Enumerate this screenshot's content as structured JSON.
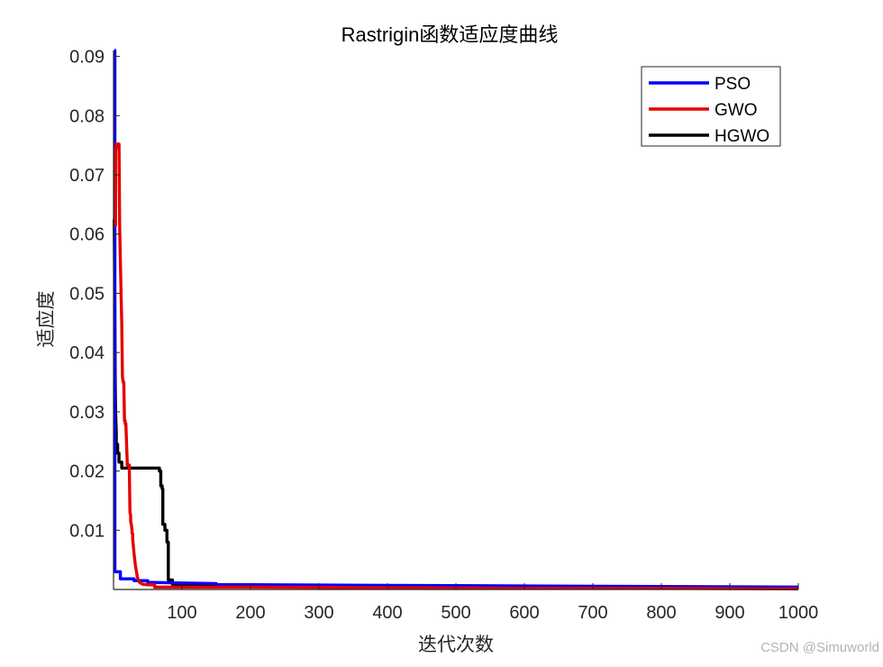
{
  "chart_data": {
    "type": "line",
    "title": "Rastrigin函数适应度曲线",
    "xlabel": "迭代次数",
    "ylabel": "适应度",
    "xlim": [
      0,
      1000
    ],
    "ylim": [
      0,
      0.091
    ],
    "x_ticks": [
      100,
      200,
      300,
      400,
      500,
      600,
      700,
      800,
      900,
      1000
    ],
    "x_tick_labels": [
      "100",
      "200",
      "300",
      "400",
      "500",
      "600",
      "700",
      "800",
      "900",
      "1000"
    ],
    "y_ticks": [
      0.01,
      0.02,
      0.03,
      0.04,
      0.05,
      0.06,
      0.07,
      0.08,
      0.09
    ],
    "y_tick_labels": [
      "0.01",
      "0.02",
      "0.03",
      "0.04",
      "0.05",
      "0.06",
      "0.07",
      "0.08",
      "0.09"
    ],
    "grid": false,
    "legend_position": "top-right",
    "series": [
      {
        "name": "PSO",
        "color": "#0000ff",
        "x": [
          1,
          2,
          2,
          10,
          10,
          30,
          30,
          50,
          50,
          100,
          150,
          150,
          200,
          400,
          600,
          800,
          1000
        ],
        "y": [
          0.091,
          0.091,
          0.003,
          0.003,
          0.0018,
          0.0018,
          0.0015,
          0.0015,
          0.0012,
          0.0011,
          0.001,
          0.0008,
          0.0008,
          0.0007,
          0.0006,
          0.0005,
          0.0004
        ]
      },
      {
        "name": "GWO",
        "color": "#e60000",
        "x": [
          1,
          3,
          3,
          4,
          4,
          8,
          9,
          11,
          12,
          13,
          14,
          15,
          16,
          17,
          17,
          18,
          20,
          20,
          23,
          24,
          25,
          25,
          26,
          27,
          27,
          28,
          28,
          30,
          32,
          35,
          38,
          42,
          48,
          60,
          60,
          90,
          100,
          200,
          400,
          600,
          800,
          1000
        ],
        "y": [
          0.0615,
          0.0615,
          0.0745,
          0.0745,
          0.0752,
          0.0752,
          0.061,
          0.05,
          0.045,
          0.036,
          0.035,
          0.035,
          0.0285,
          0.0285,
          0.028,
          0.028,
          0.0215,
          0.021,
          0.021,
          0.013,
          0.0125,
          0.0115,
          0.011,
          0.01,
          0.0095,
          0.0094,
          0.0085,
          0.006,
          0.004,
          0.002,
          0.0012,
          0.0009,
          0.0008,
          0.0008,
          0.0004,
          0.0004,
          0.0004,
          0.0004,
          0.0003,
          0.0002,
          0.0002,
          0.0001
        ]
      },
      {
        "name": "HGWO",
        "color": "#000000",
        "x": [
          1,
          1.5,
          2,
          2.5,
          3,
          4,
          4,
          6,
          6,
          8,
          8,
          12,
          12,
          67,
          67,
          69,
          69,
          71,
          71,
          72,
          72,
          75,
          75,
          78,
          78,
          80,
          80,
          86,
          86,
          100,
          120,
          150,
          200,
          300,
          400,
          600,
          800,
          1000
        ],
        "y": [
          0.0625,
          0.055,
          0.044,
          0.035,
          0.03,
          0.0265,
          0.0245,
          0.0245,
          0.023,
          0.023,
          0.0215,
          0.0215,
          0.0205,
          0.0205,
          0.02,
          0.02,
          0.0175,
          0.0175,
          0.017,
          0.017,
          0.011,
          0.011,
          0.01,
          0.01,
          0.008,
          0.008,
          0.0016,
          0.0016,
          0.0009,
          0.0008,
          0.0007,
          0.0006,
          0.0005,
          0.0004,
          0.0004,
          0.0003,
          0.0002,
          0.0002
        ]
      }
    ]
  },
  "watermark": "CSDN @Simuworld"
}
